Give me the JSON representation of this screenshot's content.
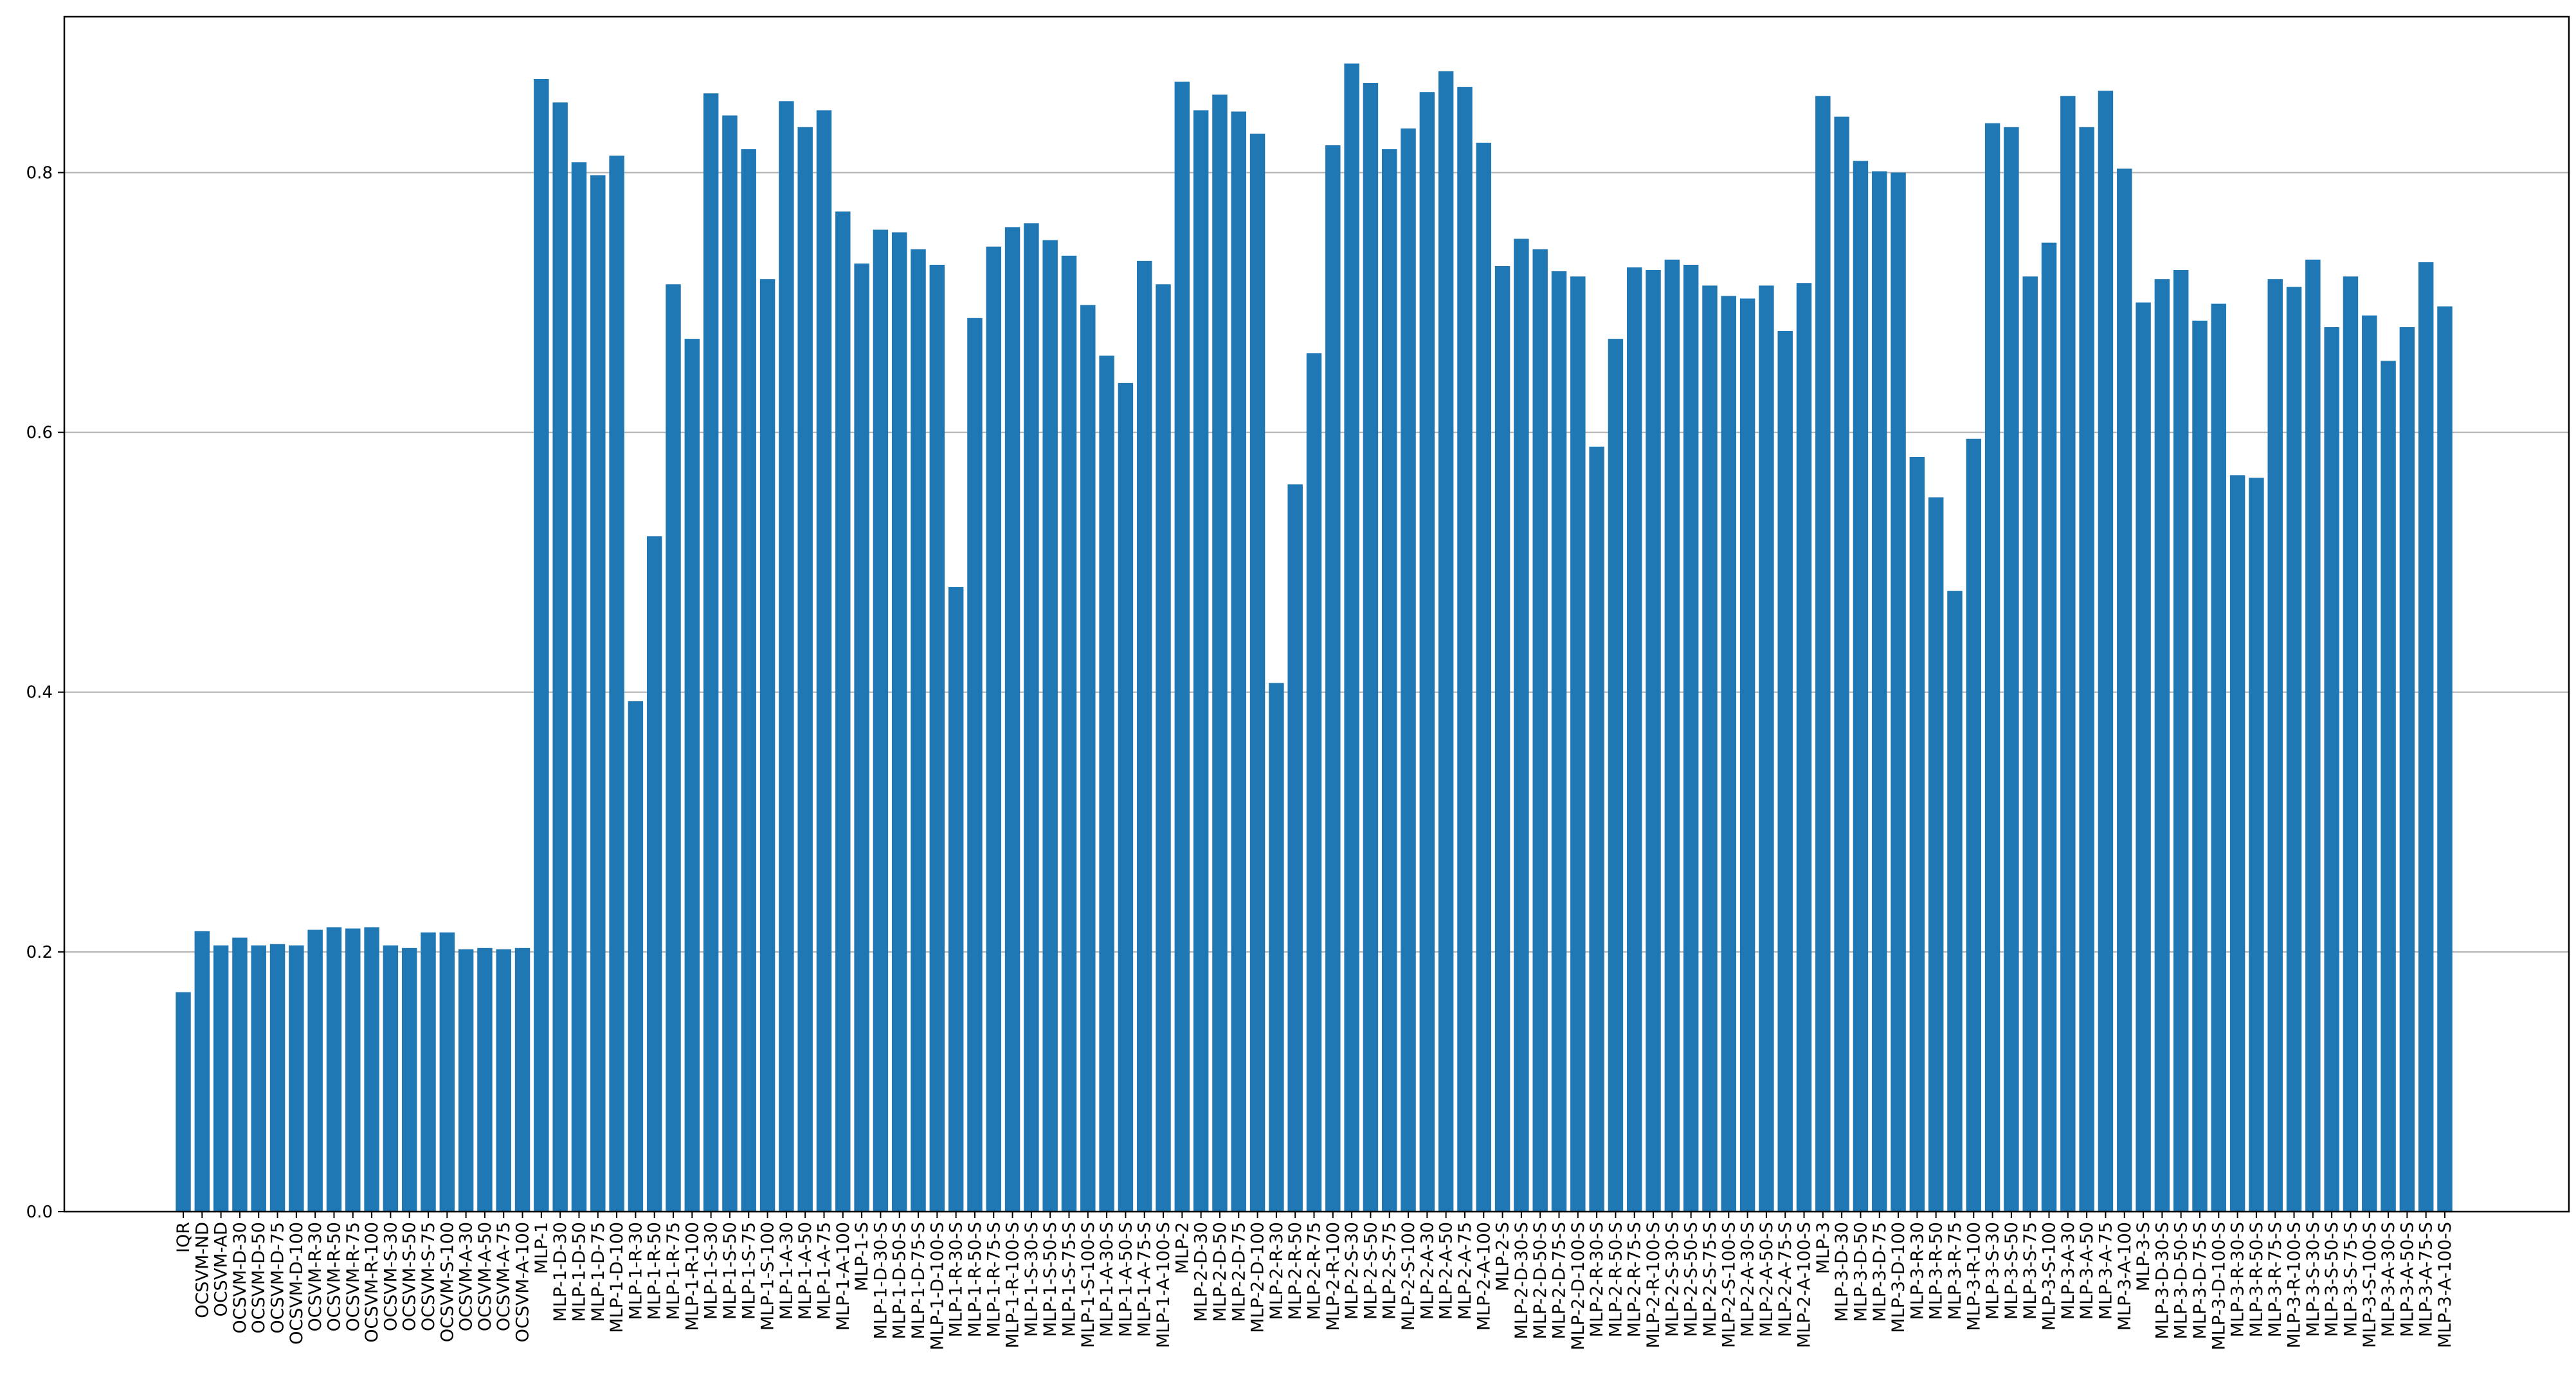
{
  "chart_data": {
    "type": "bar",
    "title": "",
    "xlabel": "",
    "ylabel": "",
    "ylim": [
      0,
      0.92
    ],
    "grid": "horizontal",
    "bar_color": "#1f77b4",
    "yticks": [
      "0.0",
      "0.2",
      "0.4",
      "0.6",
      "0.8"
    ],
    "categories": [
      "IQR",
      "OCSVM-ND",
      "OCSVM-AD",
      "OCSVM-D-30",
      "OCSVM-D-50",
      "OCSVM-D-75",
      "OCSVM-D-100",
      "OCSVM-R-30",
      "OCSVM-R-50",
      "OCSVM-R-75",
      "OCSVM-R-100",
      "OCSVM-S-30",
      "OCSVM-S-50",
      "OCSVM-S-75",
      "OCSVM-S-100",
      "OCSVM-A-30",
      "OCSVM-A-50",
      "OCSVM-A-75",
      "OCSVM-A-100",
      "MLP-1",
      "MLP-1-D-30",
      "MLP-1-D-50",
      "MLP-1-D-75",
      "MLP-1-D-100",
      "MLP-1-R-30",
      "MLP-1-R-50",
      "MLP-1-R-75",
      "MLP-1-R-100",
      "MLP-1-S-30",
      "MLP-1-S-50",
      "MLP-1-S-75",
      "MLP-1-S-100",
      "MLP-1-A-30",
      "MLP-1-A-50",
      "MLP-1-A-75",
      "MLP-1-A-100",
      "MLP-1-S",
      "MLP-1-D-30-S",
      "MLP-1-D-50-S",
      "MLP-1-D-75-S",
      "MLP-1-D-100-S",
      "MLP-1-R-30-S",
      "MLP-1-R-50-S",
      "MLP-1-R-75-S",
      "MLP-1-R-100-S",
      "MLP-1-S-30-S",
      "MLP-1-S-50-S",
      "MLP-1-S-75-S",
      "MLP-1-S-100-S",
      "MLP-1-A-30-S",
      "MLP-1-A-50-S",
      "MLP-1-A-75-S",
      "MLP-1-A-100-S",
      "MLP-2",
      "MLP-2-D-30",
      "MLP-2-D-50",
      "MLP-2-D-75",
      "MLP-2-D-100",
      "MLP-2-R-30",
      "MLP-2-R-50",
      "MLP-2-R-75",
      "MLP-2-R-100",
      "MLP-2-S-30",
      "MLP-2-S-50",
      "MLP-2-S-75",
      "MLP-2-S-100",
      "MLP-2-A-30",
      "MLP-2-A-50",
      "MLP-2-A-75",
      "MLP-2-A-100",
      "MLP-2-S",
      "MLP-2-D-30-S",
      "MLP-2-D-50-S",
      "MLP-2-D-75-S",
      "MLP-2-D-100-S",
      "MLP-2-R-30-S",
      "MLP-2-R-50-S",
      "MLP-2-R-75-S",
      "MLP-2-R-100-S",
      "MLP-2-S-30-S",
      "MLP-2-S-50-S",
      "MLP-2-S-75-S",
      "MLP-2-S-100-S",
      "MLP-2-A-30-S",
      "MLP-2-A-50-S",
      "MLP-2-A-75-S",
      "MLP-2-A-100-S",
      "MLP-3",
      "MLP-3-D-30",
      "MLP-3-D-50",
      "MLP-3-D-75",
      "MLP-3-D-100",
      "MLP-3-R-30",
      "MLP-3-R-50",
      "MLP-3-R-75",
      "MLP-3-R-100",
      "MLP-3-S-30",
      "MLP-3-S-50",
      "MLP-3-S-75",
      "MLP-3-S-100",
      "MLP-3-A-30",
      "MLP-3-A-50",
      "MLP-3-A-75",
      "MLP-3-A-100",
      "MLP-3-S",
      "MLP-3-D-30-S",
      "MLP-3-D-50-S",
      "MLP-3-D-75-S",
      "MLP-3-D-100-S",
      "MLP-3-R-30-S",
      "MLP-3-R-50-S",
      "MLP-3-R-75-S",
      "MLP-3-R-100-S",
      "MLP-3-S-30-S",
      "MLP-3-S-50-S",
      "MLP-3-S-75-S",
      "MLP-3-S-100-S",
      "MLP-3-A-30-S",
      "MLP-3-A-50-S",
      "MLP-3-A-75-S",
      "MLP-3-A-100-S"
    ],
    "values": [
      0.169,
      0.216,
      0.205,
      0.211,
      0.205,
      0.206,
      0.205,
      0.217,
      0.219,
      0.218,
      0.219,
      0.205,
      0.203,
      0.215,
      0.215,
      0.202,
      0.203,
      0.202,
      0.203,
      0.872,
      0.854,
      0.808,
      0.798,
      0.813,
      0.393,
      0.52,
      0.714,
      0.672,
      0.861,
      0.844,
      0.818,
      0.718,
      0.855,
      0.835,
      0.848,
      0.77,
      0.73,
      0.756,
      0.754,
      0.741,
      0.729,
      0.481,
      0.688,
      0.743,
      0.758,
      0.761,
      0.748,
      0.736,
      0.698,
      0.659,
      0.638,
      0.732,
      0.714,
      0.87,
      0.848,
      0.86,
      0.847,
      0.83,
      0.407,
      0.56,
      0.661,
      0.821,
      0.884,
      0.869,
      0.818,
      0.834,
      0.862,
      0.878,
      0.866,
      0.823,
      0.728,
      0.749,
      0.741,
      0.724,
      0.72,
      0.589,
      0.672,
      0.727,
      0.725,
      0.733,
      0.729,
      0.713,
      0.705,
      0.703,
      0.713,
      0.678,
      0.715,
      0.859,
      0.843,
      0.809,
      0.801,
      0.8,
      0.581,
      0.55,
      0.478,
      0.595,
      0.838,
      0.835,
      0.72,
      0.746,
      0.859,
      0.835,
      0.863,
      0.803,
      0.7,
      0.718,
      0.725,
      0.686,
      0.699,
      0.567,
      0.565,
      0.718,
      0.712,
      0.733,
      0.681,
      0.72,
      0.69,
      0.655,
      0.681,
      0.731,
      0.697
    ]
  }
}
